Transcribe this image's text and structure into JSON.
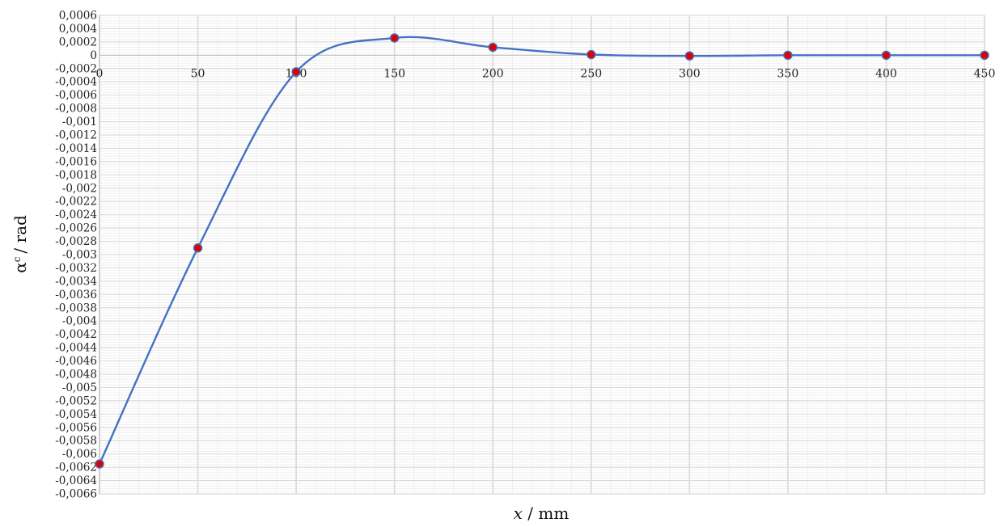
{
  "chart_data": {
    "type": "scatter",
    "title": "",
    "xlabel_italic": "x",
    "xlabel_rest": " / mm",
    "ylabel_symbol": "α",
    "ylabel_sup": "c",
    "ylabel_rest": "/ rad",
    "xlim": [
      0,
      450
    ],
    "ylim": [
      -0.0066,
      0.0006
    ],
    "x_ticks": [
      0,
      50,
      100,
      150,
      200,
      250,
      300,
      350,
      400,
      450
    ],
    "x_tick_labels": [
      "0",
      "50",
      "100",
      "150",
      "200",
      "250",
      "300",
      "350",
      "400",
      "450"
    ],
    "y_ticks": [
      0.0006,
      0.0004,
      0.0002,
      0,
      -0.0002,
      -0.0004,
      -0.0006,
      -0.0008,
      -0.001,
      -0.0012,
      -0.0014,
      -0.0016,
      -0.0018,
      -0.002,
      -0.0022,
      -0.0024,
      -0.0026,
      -0.0028,
      -0.003,
      -0.0032,
      -0.0034,
      -0.0036,
      -0.0038,
      -0.004,
      -0.0042,
      -0.0044,
      -0.0046,
      -0.0048,
      -0.005,
      -0.0052,
      -0.0054,
      -0.0056,
      -0.0058,
      -0.006,
      -0.0062,
      -0.0064,
      -0.0066
    ],
    "y_tick_labels": [
      "0,0006",
      "0,0004",
      "0,0002",
      "0",
      "-0,0002",
      "-0,0004",
      "-0,0006",
      "-0,0008",
      "-0,001",
      "-0,0012",
      "-0,0014",
      "-0,0016",
      "-0,0018",
      "-0,002",
      "-0,0022",
      "-0,0024",
      "-0,0026",
      "-0,0028",
      "-0,003",
      "-0,0032",
      "-0,0034",
      "-0,0036",
      "-0,0038",
      "-0,004",
      "-0,0042",
      "-0,0044",
      "-0,0046",
      "-0,0048",
      "-0,005",
      "-0,0052",
      "-0,0054",
      "-0,0056",
      "-0,0058",
      "-0,006",
      "-0,0062",
      "-0,0064",
      "-0,0066"
    ],
    "grid": "major and minor",
    "legend": "none",
    "line": "smoothed",
    "series": [
      {
        "x": [
          0,
          50,
          100,
          150,
          200,
          250,
          300,
          350,
          400,
          450
        ],
        "y": [
          -0.00615,
          -0.0029,
          -0.00025,
          0.00026,
          0.00012,
          1e-05,
          -1e-05,
          0.0,
          0.0,
          0.0
        ]
      }
    ],
    "colors": {
      "line": "#4472c4",
      "marker_fill": "#e00000",
      "marker_edge": "#4472c4",
      "major_grid": "#d9d9d9",
      "minor_grid": "#efefef"
    }
  }
}
